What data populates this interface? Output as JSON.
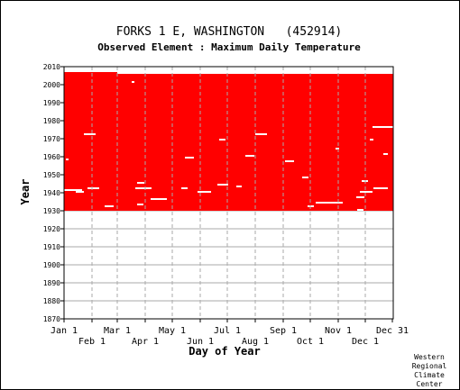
{
  "chart_data": {
    "type": "heatmap",
    "title": "FORKS 1 E, WASHINGTON   (452914)",
    "subtitle": "Observed Element : Maximum Daily Temperature",
    "xlabel": "Day of Year",
    "ylabel": "Year",
    "x_ticks_upper": [
      {
        "label": "Jan 1",
        "day": 1
      },
      {
        "label": "Mar 1",
        "day": 60
      },
      {
        "label": "May 1",
        "day": 121
      },
      {
        "label": "Jul 1",
        "day": 182
      },
      {
        "label": "Sep 1",
        "day": 244
      },
      {
        "label": "Nov 1",
        "day": 305
      },
      {
        "label": "Dec 31",
        "day": 365
      }
    ],
    "x_ticks_lower": [
      {
        "label": "Feb 1",
        "day": 32
      },
      {
        "label": "Apr 1",
        "day": 91
      },
      {
        "label": "Jun 1",
        "day": 152
      },
      {
        "label": "Aug 1",
        "day": 213
      },
      {
        "label": "Oct 1",
        "day": 274
      },
      {
        "label": "Dec 1",
        "day": 335
      }
    ],
    "xlim": [
      1,
      365
    ],
    "ylim": [
      1870,
      2010
    ],
    "y_ticks": [
      1870,
      1880,
      1890,
      1900,
      1910,
      1920,
      1930,
      1940,
      1950,
      1960,
      1970,
      1980,
      1990,
      2000,
      2010
    ],
    "grid": true,
    "color_observed": "#ff0000",
    "color_missing": "#ffffff",
    "coverage": {
      "start_year": 1930,
      "end_year": 2005,
      "extends_to_day_60_in": 2006
    },
    "missing_segments": [
      {
        "year": 1972,
        "start_day": 23,
        "end_day": 35
      },
      {
        "year": 1958,
        "start_day": 3,
        "end_day": 5
      },
      {
        "year": 1941,
        "start_day": 1,
        "end_day": 20
      },
      {
        "year": 1940,
        "start_day": 14,
        "end_day": 22
      },
      {
        "year": 1942,
        "start_day": 27,
        "end_day": 39
      },
      {
        "year": 1932,
        "start_day": 46,
        "end_day": 55
      },
      {
        "year": 1945,
        "start_day": 82,
        "end_day": 89
      },
      {
        "year": 1942,
        "start_day": 80,
        "end_day": 97
      },
      {
        "year": 1936,
        "start_day": 97,
        "end_day": 114
      },
      {
        "year": 1933,
        "start_day": 82,
        "end_day": 88
      },
      {
        "year": 1942,
        "start_day": 131,
        "end_day": 137
      },
      {
        "year": 1940,
        "start_day": 149,
        "end_day": 163
      },
      {
        "year": 1959,
        "start_day": 135,
        "end_day": 144
      },
      {
        "year": 1969,
        "start_day": 173,
        "end_day": 179
      },
      {
        "year": 1944,
        "start_day": 171,
        "end_day": 182
      },
      {
        "year": 1972,
        "start_day": 213,
        "end_day": 225
      },
      {
        "year": 1960,
        "start_day": 202,
        "end_day": 211
      },
      {
        "year": 1943,
        "start_day": 192,
        "end_day": 197
      },
      {
        "year": 1957,
        "start_day": 246,
        "end_day": 255
      },
      {
        "year": 1948,
        "start_day": 265,
        "end_day": 271
      },
      {
        "year": 1934,
        "start_day": 280,
        "end_day": 309
      },
      {
        "year": 1932,
        "start_day": 271,
        "end_day": 277
      },
      {
        "year": 1940,
        "start_day": 329,
        "end_day": 342
      },
      {
        "year": 1942,
        "start_day": 344,
        "end_day": 359
      },
      {
        "year": 1946,
        "start_day": 331,
        "end_day": 337
      },
      {
        "year": 1976,
        "start_day": 343,
        "end_day": 365
      },
      {
        "year": 1969,
        "start_day": 340,
        "end_day": 343
      },
      {
        "year": 1961,
        "start_day": 355,
        "end_day": 359
      },
      {
        "year": 1937,
        "start_day": 325,
        "end_day": 333
      },
      {
        "year": 1930,
        "start_day": 326,
        "end_day": 332
      },
      {
        "year": 2001,
        "start_day": 76,
        "end_day": 78
      },
      {
        "year": 1964,
        "start_day": 302,
        "end_day": 305
      }
    ],
    "credit": [
      "Western",
      "Regional",
      "Climate",
      "Center"
    ]
  }
}
